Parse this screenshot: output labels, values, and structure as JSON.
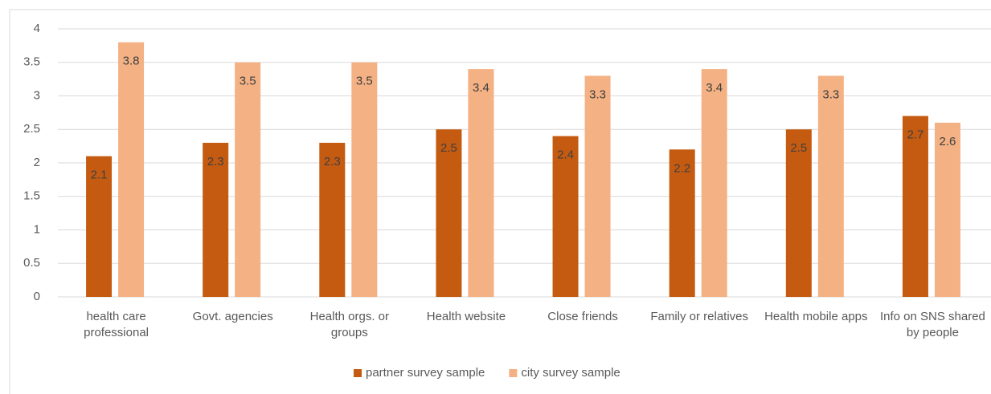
{
  "chart_data": {
    "type": "bar",
    "categories": [
      "health care professional",
      "Govt. agencies",
      "Health orgs. or groups",
      "Health website",
      "Close friends",
      "Family or relatives",
      "Health mobile apps",
      "Info on SNS shared by people"
    ],
    "series": [
      {
        "name": "partner survey sample",
        "color": "#c55a11",
        "values": [
          2.1,
          2.3,
          2.3,
          2.5,
          2.4,
          2.2,
          2.5,
          2.7
        ]
      },
      {
        "name": "city survey sample",
        "color": "#f4b183",
        "values": [
          3.8,
          3.5,
          3.5,
          3.4,
          3.3,
          3.4,
          3.3,
          2.6
        ]
      }
    ],
    "ylim": [
      0,
      4
    ],
    "yticks": [
      0,
      0.5,
      1,
      1.5,
      2,
      2.5,
      3,
      3.5,
      4
    ],
    "grid": true,
    "legend": "bottom"
  }
}
